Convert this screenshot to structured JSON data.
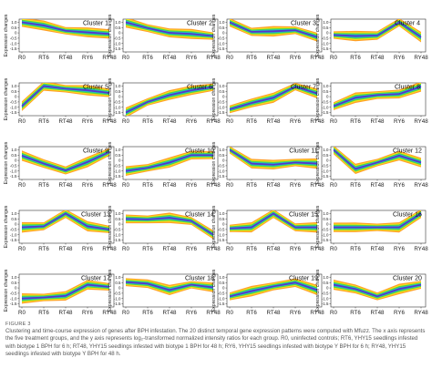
{
  "colors": {
    "band_outer": "#ff9a1e",
    "band_mid_outer": "#f6e51c",
    "band_mid": "#4cd43a",
    "band_inner": "#1fc4c4",
    "band_core": "#2f6de0",
    "band_center": "#5a35c8",
    "axis": "#333333"
  },
  "chart_data": {
    "type": "line",
    "x": [
      "R0",
      "RT6",
      "RT48",
      "RY6",
      "RY48"
    ],
    "ylabel": "Expression changes",
    "yticks": [
      1.0,
      0.5,
      0.0,
      -0.5,
      -1.0,
      -1.5
    ],
    "ytick_labels": [
      "1.0",
      "0.5",
      "0",
      "-0.5",
      "-1.0",
      "-1.5"
    ],
    "ylim": [
      -1.8,
      1.3
    ],
    "clusters": [
      {
        "name": "Cluster 1",
        "values": [
          1.0,
          0.7,
          0.2,
          0.05,
          -0.1
        ]
      },
      {
        "name": "Cluster 2",
        "values": [
          1.0,
          0.45,
          0.0,
          -0.1,
          -0.3
        ]
      },
      {
        "name": "Cluster 3",
        "values": [
          1.0,
          0.1,
          0.15,
          0.25,
          -0.4
        ]
      },
      {
        "name": "Cluster 4",
        "values": [
          -0.2,
          -0.3,
          -0.25,
          1.0,
          -0.4
        ]
      },
      {
        "name": "Cluster 5",
        "values": [
          -0.9,
          1.0,
          0.75,
          0.6,
          0.35
        ]
      },
      {
        "name": "Cluster 6",
        "values": [
          -1.5,
          -0.5,
          0.15,
          0.6,
          0.9
        ]
      },
      {
        "name": "Cluster 7",
        "values": [
          -1.2,
          -0.6,
          -0.1,
          0.95,
          0.3
        ]
      },
      {
        "name": "Cluster 8",
        "values": [
          -0.9,
          -0.1,
          0.15,
          0.25,
          0.95
        ]
      },
      {
        "name": "Cluster 9",
        "values": [
          0.45,
          -0.3,
          -0.95,
          -0.15,
          0.8
        ]
      },
      {
        "name": "Cluster 10",
        "values": [
          -1.0,
          -0.7,
          -0.2,
          0.5,
          0.5
        ]
      },
      {
        "name": "Cluster 11",
        "values": [
          1.0,
          -0.3,
          -0.4,
          -0.2,
          -0.3
        ]
      },
      {
        "name": "Cluster 12",
        "values": [
          1.0,
          -0.8,
          -0.2,
          0.45,
          -0.2
        ]
      },
      {
        "name": "Cluster 13",
        "values": [
          -0.3,
          -0.2,
          1.0,
          -0.2,
          -0.5
        ]
      },
      {
        "name": "Cluster 14",
        "values": [
          0.5,
          0.45,
          0.6,
          0.3,
          -1.0
        ]
      },
      {
        "name": "Cluster 15",
        "values": [
          -0.4,
          -0.3,
          1.0,
          -0.3,
          -0.3
        ]
      },
      {
        "name": "Cluster 16",
        "values": [
          -0.3,
          -0.3,
          -0.3,
          -0.3,
          1.0
        ]
      },
      {
        "name": "Cluster 17",
        "values": [
          -1.0,
          -0.9,
          -0.75,
          0.3,
          0.1
        ]
      },
      {
        "name": "Cluster 18",
        "values": [
          0.55,
          0.4,
          -0.2,
          0.3,
          0.05
        ]
      },
      {
        "name": "Cluster 19",
        "values": [
          -0.8,
          -0.3,
          0.15,
          0.5,
          -0.2
        ]
      },
      {
        "name": "Cluster 20",
        "values": [
          0.3,
          -0.1,
          -0.8,
          -0.1,
          0.3
        ]
      }
    ]
  },
  "caption": {
    "label": "FIGURE 3",
    "text": "Clustering and time-course expression of genes after BPH infestation. The 20 distinct temporal gene expression patterns were computed with Mfuzz. The x axis represents the five treatment groups, and the y axis represents log₂-transformed normalized intensity ratios for each group. R0, uninfected controls; RT6, YHY15 seedlings infested with biotype 1 BPH for 6 h; RT48, YHY15 seedlings infested with biotype 1 BPH for 48 h; RY6, YHY15 seedlings infested with biotype Y BPH for 6 h; RY48, YHY15 seedlings infested with biotype Y BPH for 48 h."
  }
}
